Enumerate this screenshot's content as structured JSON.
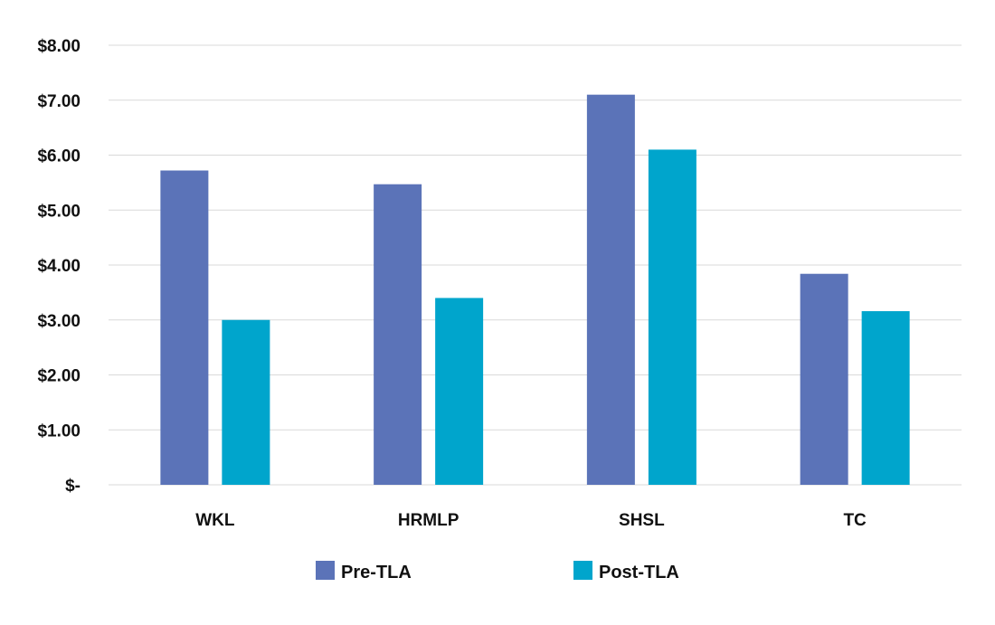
{
  "chart_data": {
    "type": "bar",
    "title": "",
    "xlabel": "",
    "ylabel": "",
    "categories": [
      "WKL",
      "HRMLP",
      "SHSL",
      "TC"
    ],
    "series": [
      {
        "name": "Pre-TLA",
        "color": "#5b73b8",
        "values": [
          5.72,
          5.47,
          7.1,
          3.84
        ]
      },
      {
        "name": "Post-TLA",
        "color": "#00a5cc",
        "values": [
          3.0,
          3.4,
          6.1,
          3.16
        ]
      }
    ],
    "ylim": [
      0,
      8
    ],
    "y_ticks": [
      {
        "value": 0,
        "label": "$-"
      },
      {
        "value": 1,
        "label": "$1.00"
      },
      {
        "value": 2,
        "label": "$2.00"
      },
      {
        "value": 3,
        "label": "$3.00"
      },
      {
        "value": 4,
        "label": "$4.00"
      },
      {
        "value": 5,
        "label": "$5.00"
      },
      {
        "value": 6,
        "label": "$6.00"
      },
      {
        "value": 7,
        "label": "$7.00"
      },
      {
        "value": 8,
        "label": "$8.00"
      }
    ],
    "grid": true,
    "legend_position": "bottom-center"
  }
}
